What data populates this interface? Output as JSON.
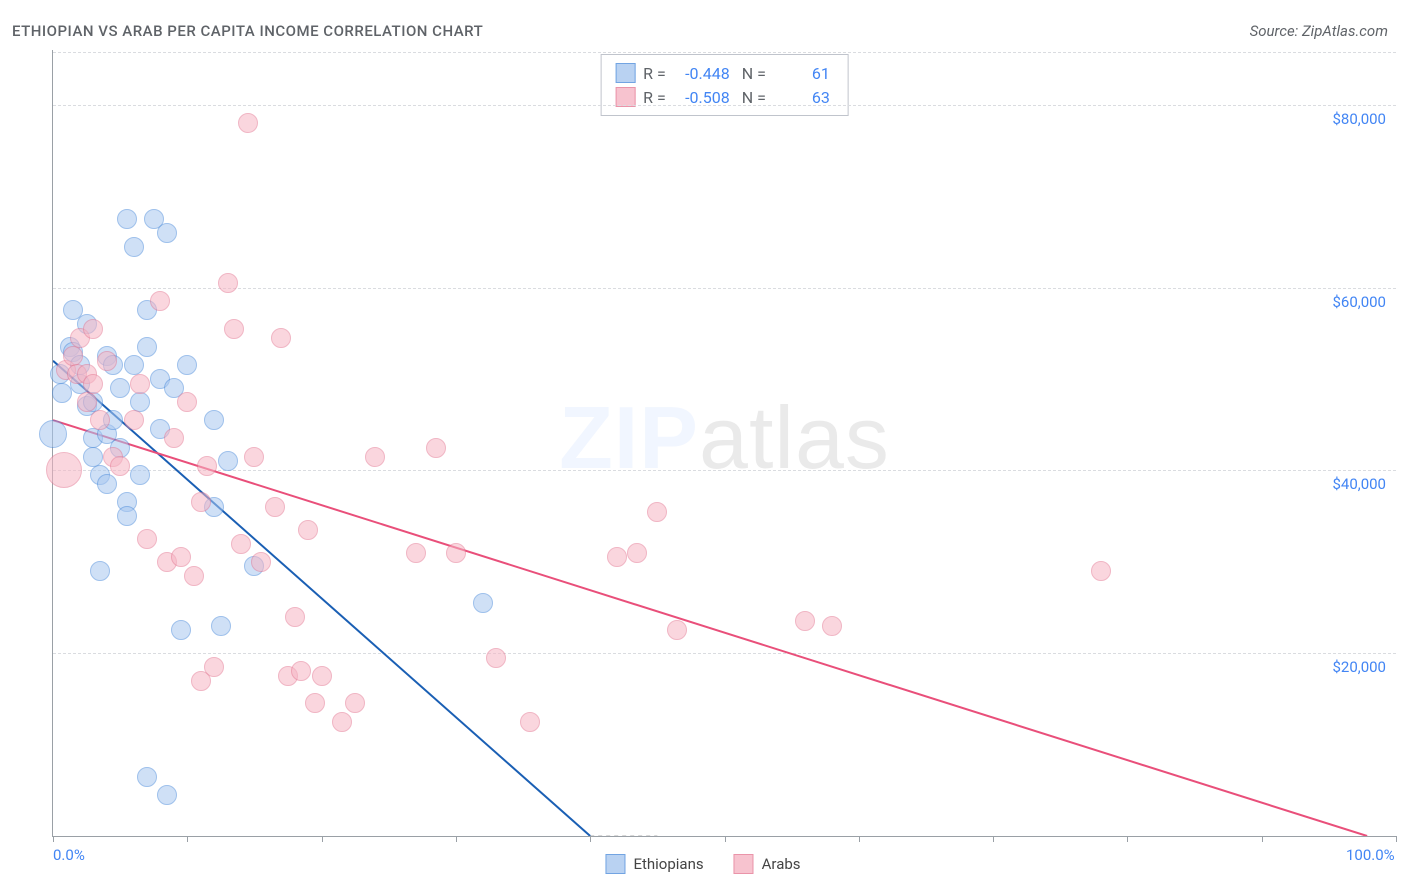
{
  "chart": {
    "type": "scatter",
    "title": "ETHIOPIAN VS ARAB PER CAPITA INCOME CORRELATION CHART",
    "source_label": "Source: ZipAtlas.com",
    "ylabel": "Per Capita Income",
    "background_color": "#ffffff",
    "grid_color": "#dadce0",
    "axis_color": "#9aa0a6",
    "text_color": "#5f6368",
    "value_color": "#4285f4",
    "title_fontsize": 15,
    "label_fontsize": 14,
    "tick_fontsize": 15,
    "xlim": [
      0,
      100
    ],
    "ylim": [
      0,
      86000
    ],
    "x_ticks": [
      0,
      10,
      20,
      30,
      40,
      50,
      60,
      70,
      80,
      90,
      100
    ],
    "x_tick_labels": {
      "0": "0.0%",
      "100": "100.0%"
    },
    "y_gridlines": [
      20000,
      40000,
      60000,
      80000
    ],
    "y_tick_labels": {
      "20000": "$20,000",
      "40000": "$40,000",
      "60000": "$60,000",
      "80000": "$80,000"
    },
    "watermark": {
      "text_a": "ZIP",
      "text_b": "atlas",
      "fontsize": 88,
      "opacity": 0.08
    },
    "series": [
      {
        "name": "Ethiopians",
        "fill_color": "#a8c7f0",
        "fill_opacity": 0.55,
        "stroke_color": "#4f8edb",
        "marker_radius": 10,
        "R": "-0.448",
        "N": "61",
        "trend": {
          "x1": 0,
          "y1": 52000,
          "x2": 40,
          "y2": 0,
          "color": "#1a5fb4",
          "width": 2,
          "extrap_dash": true,
          "extrap_x2": 45
        },
        "points": [
          {
            "x": 0.0,
            "y": 44000,
            "r": 14
          },
          {
            "x": 0.5,
            "y": 50500,
            "r": 10
          },
          {
            "x": 0.7,
            "y": 48500,
            "r": 10
          },
          {
            "x": 1.3,
            "y": 53500,
            "r": 10
          },
          {
            "x": 1.5,
            "y": 53000,
            "r": 10
          },
          {
            "x": 1.5,
            "y": 57500,
            "r": 10
          },
          {
            "x": 2.0,
            "y": 51500,
            "r": 10
          },
          {
            "x": 2.0,
            "y": 49500,
            "r": 10
          },
          {
            "x": 2.5,
            "y": 56000,
            "r": 10
          },
          {
            "x": 2.5,
            "y": 47000,
            "r": 10
          },
          {
            "x": 3.0,
            "y": 41500,
            "r": 10
          },
          {
            "x": 3.0,
            "y": 47500,
            "r": 10
          },
          {
            "x": 3.0,
            "y": 43500,
            "r": 10
          },
          {
            "x": 3.5,
            "y": 39500,
            "r": 10
          },
          {
            "x": 3.5,
            "y": 29000,
            "r": 10
          },
          {
            "x": 4.0,
            "y": 44000,
            "r": 10
          },
          {
            "x": 4.0,
            "y": 52500,
            "r": 10
          },
          {
            "x": 4.0,
            "y": 38500,
            "r": 10
          },
          {
            "x": 4.5,
            "y": 51500,
            "r": 10
          },
          {
            "x": 4.5,
            "y": 45500,
            "r": 10
          },
          {
            "x": 5.0,
            "y": 49000,
            "r": 10
          },
          {
            "x": 5.0,
            "y": 42500,
            "r": 10
          },
          {
            "x": 5.5,
            "y": 67500,
            "r": 10
          },
          {
            "x": 5.5,
            "y": 36500,
            "r": 10
          },
          {
            "x": 5.5,
            "y": 35000,
            "r": 10
          },
          {
            "x": 6.0,
            "y": 64500,
            "r": 10
          },
          {
            "x": 6.0,
            "y": 51500,
            "r": 10
          },
          {
            "x": 6.5,
            "y": 39500,
            "r": 10
          },
          {
            "x": 6.5,
            "y": 47500,
            "r": 10
          },
          {
            "x": 7.0,
            "y": 57500,
            "r": 10
          },
          {
            "x": 7.0,
            "y": 53500,
            "r": 10
          },
          {
            "x": 7.0,
            "y": 6500,
            "r": 10
          },
          {
            "x": 7.5,
            "y": 67500,
            "r": 10
          },
          {
            "x": 8.0,
            "y": 50000,
            "r": 10
          },
          {
            "x": 8.0,
            "y": 44500,
            "r": 10
          },
          {
            "x": 8.5,
            "y": 66000,
            "r": 10
          },
          {
            "x": 8.5,
            "y": 4500,
            "r": 10
          },
          {
            "x": 9.0,
            "y": 49000,
            "r": 10
          },
          {
            "x": 9.5,
            "y": 22500,
            "r": 10
          },
          {
            "x": 10.0,
            "y": 51500,
            "r": 10
          },
          {
            "x": 12.0,
            "y": 45500,
            "r": 10
          },
          {
            "x": 12.0,
            "y": 36000,
            "r": 10
          },
          {
            "x": 12.5,
            "y": 23000,
            "r": 10
          },
          {
            "x": 13.0,
            "y": 41000,
            "r": 10
          },
          {
            "x": 15.0,
            "y": 29500,
            "r": 10
          },
          {
            "x": 32.0,
            "y": 25500,
            "r": 10
          }
        ]
      },
      {
        "name": "Arabs",
        "fill_color": "#f6b5c4",
        "fill_opacity": 0.55,
        "stroke_color": "#e57a94",
        "marker_radius": 10,
        "R": "-0.508",
        "N": "63",
        "trend": {
          "x1": 0,
          "y1": 45500,
          "x2": 100,
          "y2": -1000,
          "color": "#e94f7a",
          "width": 2,
          "extrap_dash": false
        },
        "points": [
          {
            "x": 0.8,
            "y": 40000,
            "r": 18
          },
          {
            "x": 1.0,
            "y": 51000,
            "r": 10
          },
          {
            "x": 1.5,
            "y": 52500,
            "r": 10
          },
          {
            "x": 1.8,
            "y": 50500,
            "r": 10
          },
          {
            "x": 2.0,
            "y": 54500,
            "r": 10
          },
          {
            "x": 2.5,
            "y": 47500,
            "r": 10
          },
          {
            "x": 2.5,
            "y": 50500,
            "r": 10
          },
          {
            "x": 3.0,
            "y": 55500,
            "r": 10
          },
          {
            "x": 3.0,
            "y": 49500,
            "r": 10
          },
          {
            "x": 3.5,
            "y": 45500,
            "r": 10
          },
          {
            "x": 4.0,
            "y": 52000,
            "r": 10
          },
          {
            "x": 4.5,
            "y": 41500,
            "r": 10
          },
          {
            "x": 5.0,
            "y": 40500,
            "r": 10
          },
          {
            "x": 6.0,
            "y": 45500,
            "r": 10
          },
          {
            "x": 6.5,
            "y": 49500,
            "r": 10
          },
          {
            "x": 7.0,
            "y": 32500,
            "r": 10
          },
          {
            "x": 8.0,
            "y": 58500,
            "r": 10
          },
          {
            "x": 8.5,
            "y": 30000,
            "r": 10
          },
          {
            "x": 9.0,
            "y": 43500,
            "r": 10
          },
          {
            "x": 9.5,
            "y": 30500,
            "r": 10
          },
          {
            "x": 10.0,
            "y": 47500,
            "r": 10
          },
          {
            "x": 10.5,
            "y": 28500,
            "r": 10
          },
          {
            "x": 11.0,
            "y": 36500,
            "r": 10
          },
          {
            "x": 11.0,
            "y": 17000,
            "r": 10
          },
          {
            "x": 11.5,
            "y": 40500,
            "r": 10
          },
          {
            "x": 12.0,
            "y": 18500,
            "r": 10
          },
          {
            "x": 13.0,
            "y": 60500,
            "r": 10
          },
          {
            "x": 13.5,
            "y": 55500,
            "r": 10
          },
          {
            "x": 14.0,
            "y": 32000,
            "r": 10
          },
          {
            "x": 14.5,
            "y": 78000,
            "r": 10
          },
          {
            "x": 15.0,
            "y": 41500,
            "r": 10
          },
          {
            "x": 15.5,
            "y": 30000,
            "r": 10
          },
          {
            "x": 16.5,
            "y": 36000,
            "r": 10
          },
          {
            "x": 17.0,
            "y": 54500,
            "r": 10
          },
          {
            "x": 17.5,
            "y": 17500,
            "r": 10
          },
          {
            "x": 18.0,
            "y": 24000,
            "r": 10
          },
          {
            "x": 18.5,
            "y": 18000,
            "r": 10
          },
          {
            "x": 19.0,
            "y": 33500,
            "r": 10
          },
          {
            "x": 19.5,
            "y": 14500,
            "r": 10
          },
          {
            "x": 20.0,
            "y": 17500,
            "r": 10
          },
          {
            "x": 21.5,
            "y": 12500,
            "r": 10
          },
          {
            "x": 22.5,
            "y": 14500,
            "r": 10
          },
          {
            "x": 24.0,
            "y": 41500,
            "r": 10
          },
          {
            "x": 27.0,
            "y": 31000,
            "r": 10
          },
          {
            "x": 28.5,
            "y": 42500,
            "r": 10
          },
          {
            "x": 30.0,
            "y": 31000,
            "r": 10
          },
          {
            "x": 33.0,
            "y": 19500,
            "r": 10
          },
          {
            "x": 35.5,
            "y": 12500,
            "r": 10
          },
          {
            "x": 42.0,
            "y": 30500,
            "r": 10
          },
          {
            "x": 43.5,
            "y": 31000,
            "r": 10
          },
          {
            "x": 45.0,
            "y": 35500,
            "r": 10
          },
          {
            "x": 46.5,
            "y": 22500,
            "r": 10
          },
          {
            "x": 56.0,
            "y": 23500,
            "r": 10
          },
          {
            "x": 58.0,
            "y": 23000,
            "r": 10
          },
          {
            "x": 78.0,
            "y": 29000,
            "r": 10
          }
        ]
      }
    ],
    "bottom_legend": [
      "Ethiopians",
      "Arabs"
    ]
  }
}
